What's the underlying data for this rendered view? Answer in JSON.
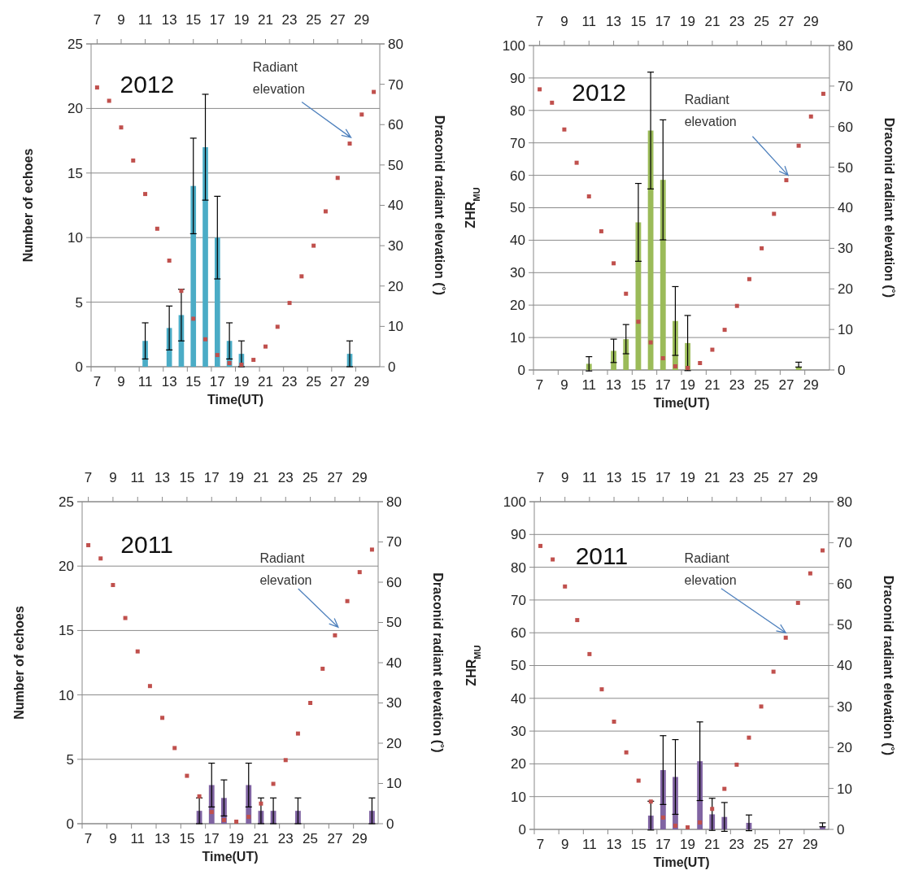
{
  "chart_data": [
    {
      "type": "bar",
      "xlim": [
        6.5,
        30.5
      ],
      "xticks": [
        7,
        9,
        11,
        13,
        15,
        17,
        19,
        21,
        23,
        25,
        27,
        29
      ],
      "xlabel": "Time(UT)",
      "ylabel": "Number of echoes",
      "y2label": "Draconid radiant elevation (˚)",
      "annotations": [
        "2012",
        "Radiant elevation"
      ],
      "ylim": [
        0,
        25
      ],
      "yticks": [
        0,
        5,
        10,
        15,
        20,
        25
      ],
      "y2lim": [
        0,
        80
      ],
      "y2ticks": [
        0,
        10,
        20,
        30,
        40,
        50,
        60,
        70,
        80
      ],
      "x2lim": [
        6.5,
        30.5
      ],
      "x2ticks": [
        7,
        9,
        11,
        13,
        15,
        17,
        19,
        21,
        23,
        25,
        27,
        29
      ],
      "grid": "y",
      "marker": "square",
      "series": [
        {
          "color": "#4bacc6",
          "x": [
            11,
            13,
            14,
            15,
            16,
            17,
            18,
            19,
            28
          ],
          "values": [
            2,
            3,
            4,
            14,
            17,
            10,
            2,
            1,
            1
          ],
          "errors": [
            1.4,
            1.7,
            2,
            3.7,
            4.1,
            3.2,
            1.4,
            1,
            1
          ]
        },
        {
          "type": "scatter",
          "color": "#c0504d",
          "axis": "y2",
          "x": [
            7,
            8,
            9,
            10,
            11,
            12,
            13,
            14,
            15,
            16,
            17,
            18,
            19,
            20,
            21,
            22,
            23,
            24,
            25,
            26,
            27,
            28,
            29,
            30
          ],
          "values": [
            69.2,
            65.9,
            59.3,
            51.1,
            42.8,
            34.2,
            26.3,
            18.8,
            11.9,
            6.8,
            2.9,
            0.9,
            0.5,
            1.7,
            5,
            9.9,
            15.8,
            22.4,
            30,
            38.5,
            46.8,
            55.3,
            62.5,
            68.1
          ]
        }
      ]
    },
    {
      "type": "bar",
      "xlim": [
        6.5,
        30.5
      ],
      "xticks": [
        7,
        9,
        11,
        13,
        15,
        17,
        19,
        21,
        23,
        25,
        27,
        29
      ],
      "xlabel": "Time(UT)",
      "ylabel": "ZHR$_{MU}$",
      "y2label": "Draconid radiant elevation (˚)",
      "annotations": [
        "2012",
        "Radiant elevation"
      ],
      "ylim": [
        0,
        100
      ],
      "yticks": [
        0,
        10,
        20,
        30,
        40,
        50,
        60,
        70,
        80,
        90,
        100
      ],
      "y2lim": [
        0,
        80
      ],
      "y2ticks": [
        0,
        10,
        20,
        30,
        40,
        50,
        60,
        70,
        80
      ],
      "x2lim": [
        6.5,
        30.5
      ],
      "x2ticks": [
        7,
        9,
        11,
        13,
        15,
        17,
        19,
        21,
        23,
        25,
        27,
        29
      ],
      "grid": "y",
      "marker": "square",
      "series": [
        {
          "color": "#9bbb59",
          "x": [
            11,
            13,
            14,
            15,
            16,
            17,
            18,
            19,
            28
          ],
          "values": [
            1.9,
            5.9,
            9.5,
            45.5,
            73.8,
            58.6,
            15.1,
            8.3,
            0.9
          ],
          "errors": [
            2.2,
            3.6,
            4.5,
            12,
            18,
            18.5,
            10.6,
            8.5,
            [
              0.9,
              2.4
            ]
          ]
        },
        {
          "type": "scatter",
          "color": "#c0504d",
          "axis": "y2",
          "x": [
            7,
            8,
            9,
            10,
            11,
            12,
            13,
            14,
            15,
            16,
            17,
            18,
            19,
            20,
            21,
            22,
            23,
            24,
            25,
            26,
            27,
            28,
            29,
            30
          ],
          "values": [
            69.2,
            65.9,
            59.3,
            51.1,
            42.8,
            34.2,
            26.3,
            18.8,
            11.9,
            6.8,
            2.9,
            0.9,
            0.5,
            1.7,
            5,
            9.9,
            15.8,
            22.4,
            30,
            38.5,
            46.8,
            55.3,
            62.5,
            68.1
          ]
        }
      ]
    },
    {
      "type": "bar",
      "xlim": [
        6.5,
        30.5
      ],
      "xticks": [
        7,
        9,
        11,
        13,
        15,
        17,
        19,
        21,
        23,
        25,
        27,
        29
      ],
      "xlabel": "Time(UT)",
      "ylabel": "Number of echoes",
      "y2label": "Draconid radiant elevation (˚)",
      "annotations": [
        "2011",
        "Radiant elevation"
      ],
      "ylim": [
        0,
        25
      ],
      "yticks": [
        0,
        5,
        10,
        15,
        20,
        25
      ],
      "y2lim": [
        0,
        80
      ],
      "y2ticks": [
        0,
        10,
        20,
        30,
        40,
        50,
        60,
        70,
        80
      ],
      "x2lim": [
        6.5,
        30.5
      ],
      "x2ticks": [
        7,
        9,
        11,
        13,
        15,
        17,
        19,
        21,
        23,
        25,
        27,
        29
      ],
      "grid": "y",
      "marker": "square",
      "series": [
        {
          "color": "#8064a2",
          "x": [
            16,
            17,
            18,
            20,
            21,
            22,
            24,
            30
          ],
          "values": [
            1,
            3,
            2,
            3,
            1,
            1,
            1,
            1
          ],
          "errors": [
            1,
            1.7,
            1.4,
            1.7,
            1,
            1,
            1,
            1
          ]
        },
        {
          "type": "scatter",
          "color": "#c0504d",
          "axis": "y2",
          "x": [
            7,
            8,
            9,
            10,
            11,
            12,
            13,
            14,
            15,
            16,
            17,
            18,
            19,
            20,
            21,
            22,
            23,
            24,
            25,
            26,
            27,
            28,
            29,
            30
          ],
          "values": [
            69.2,
            65.9,
            59.3,
            51.1,
            42.8,
            34.2,
            26.3,
            18.8,
            11.9,
            6.8,
            2.9,
            0.9,
            0.5,
            1.7,
            5,
            9.9,
            15.8,
            22.4,
            30,
            38.5,
            46.8,
            55.3,
            62.5,
            68.1
          ]
        }
      ]
    },
    {
      "type": "bar",
      "xlim": [
        6.5,
        30.5
      ],
      "xticks": [
        7,
        9,
        11,
        13,
        15,
        17,
        19,
        21,
        23,
        25,
        27,
        29
      ],
      "xlabel": "Time(UT)",
      "ylabel": "ZHR$_{MU}$",
      "y2label": "Draconid radiant elevation (˚)",
      "annotations": [
        "2011",
        {
          "text": "Radiant elevation",
          "x": 27,
          "y": 60
        }
      ],
      "ylim": [
        0,
        100
      ],
      "yticks": [
        0,
        10,
        20,
        30,
        40,
        50,
        60,
        70,
        80,
        90,
        100
      ],
      "y2lim": [
        0,
        80
      ],
      "y2ticks": [
        0,
        10,
        20,
        30,
        40,
        50,
        60,
        70,
        80
      ],
      "x2lim": [
        6.5,
        30.5
      ],
      "x2ticks": [
        7,
        9,
        11,
        13,
        15,
        17,
        19,
        21,
        23,
        25,
        27,
        29
      ],
      "grid": "y",
      "marker": "square",
      "series": [
        {
          "color": "#8064a2",
          "x": [
            16,
            17,
            18,
            20,
            21,
            22,
            24,
            30
          ],
          "values": [
            4.2,
            18.1,
            16,
            20.8,
            4.6,
            3.8,
            2,
            0.8
          ],
          "errors": [
            4.4,
            10.5,
            11.4,
            12,
            4.9,
            4.4,
            2.4,
            [
              0.8,
              2
            ]
          ]
        },
        {
          "type": "scatter",
          "color": "#c0504d",
          "axis": "y2",
          "x": [
            7,
            8,
            9,
            10,
            11,
            12,
            13,
            14,
            15,
            16,
            17,
            18,
            19,
            20,
            21,
            22,
            23,
            24,
            25,
            26,
            27,
            28,
            29,
            30
          ],
          "values": [
            69.2,
            65.9,
            59.3,
            51.1,
            42.8,
            34.2,
            26.3,
            18.8,
            11.9,
            6.8,
            2.9,
            0.9,
            0.5,
            1.7,
            5,
            9.9,
            15.8,
            22.4,
            30,
            38.5,
            46.8,
            55.3,
            62.5,
            68.1
          ]
        }
      ]
    }
  ]
}
